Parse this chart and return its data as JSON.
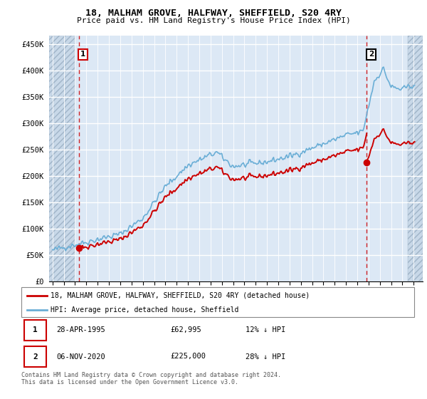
{
  "title": "18, MALHAM GROVE, HALFWAY, SHEFFIELD, S20 4RY",
  "subtitle": "Price paid vs. HM Land Registry's House Price Index (HPI)",
  "ylabel_ticks": [
    "£0",
    "£50K",
    "£100K",
    "£150K",
    "£200K",
    "£250K",
    "£300K",
    "£350K",
    "£400K",
    "£450K"
  ],
  "ytick_values": [
    0,
    50000,
    100000,
    150000,
    200000,
    250000,
    300000,
    350000,
    400000,
    450000
  ],
  "ylim": [
    0,
    465000
  ],
  "xlim_start": 1992.7,
  "xlim_end": 2025.8,
  "transaction1_x": 1995.32,
  "transaction1_y": 62995,
  "transaction1_label": "1",
  "transaction2_x": 2020.84,
  "transaction2_y": 225000,
  "transaction2_label": "2",
  "bg_color": "#dce8f5",
  "hatch_left_end": 1995.0,
  "grid_color": "#ffffff",
  "hpi_line_color": "#6aaed6",
  "price_line_color": "#cc0000",
  "marker_color": "#cc0000",
  "vline_color": "#cc0000",
  "legend_house_label": "18, MALHAM GROVE, HALFWAY, SHEFFIELD, S20 4RY (detached house)",
  "legend_hpi_label": "HPI: Average price, detached house, Sheffield",
  "info1_num": "1",
  "info1_date": "28-APR-1995",
  "info1_price": "£62,995",
  "info1_hpi": "12% ↓ HPI",
  "info2_num": "2",
  "info2_date": "06-NOV-2020",
  "info2_price": "£225,000",
  "info2_hpi": "28% ↓ HPI",
  "footer": "Contains HM Land Registry data © Crown copyright and database right 2024.\nThis data is licensed under the Open Government Licence v3.0.",
  "xtick_years": [
    1993,
    1994,
    1995,
    1996,
    1997,
    1998,
    1999,
    2000,
    2001,
    2002,
    2003,
    2004,
    2005,
    2006,
    2007,
    2008,
    2009,
    2010,
    2011,
    2012,
    2013,
    2014,
    2015,
    2016,
    2017,
    2018,
    2019,
    2020,
    2021,
    2022,
    2023,
    2024,
    2025
  ]
}
